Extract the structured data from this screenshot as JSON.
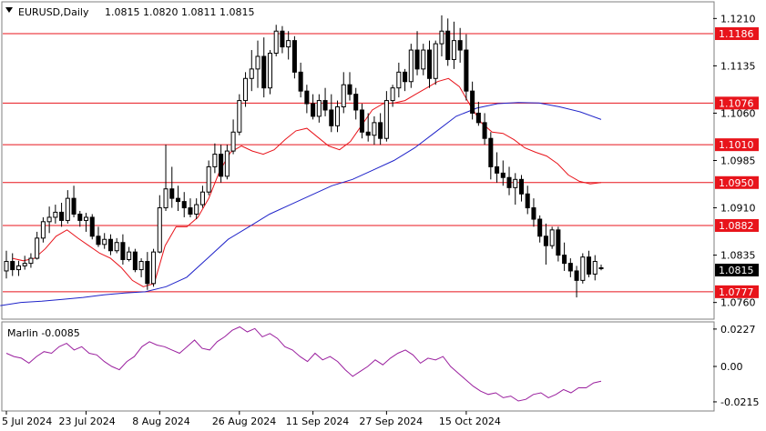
{
  "header": {
    "symbol": "EURUSD,Daily",
    "ohlc": "1.0815 1.0820 1.0811 1.0815"
  },
  "indicator_label": "Marlin -0.0085",
  "current_price_label": "1.0815",
  "colors": {
    "level_line": "#e8141b",
    "level_label_bg": "#e8141b",
    "ma_fast": "#e8141b",
    "ma_slow": "#1f23c9",
    "oscillator": "#9a1f9e",
    "current_price_bg": "#000000"
  },
  "chart_data": [
    {
      "type": "candlestick",
      "ylim": [
        1.0735,
        1.1235
      ],
      "y_ticks": [
        "1.1210",
        "1.1135",
        "1.1060",
        "1.0985",
        "1.0910",
        "1.0835",
        "1.0760"
      ],
      "x_ticks": [
        "5 Jul 2024",
        "23 Jul 2024",
        "8 Aug 2024",
        "26 Aug 2024",
        "11 Sep 2024",
        "27 Sep 2024",
        "15 Oct 2024"
      ],
      "levels": [
        "1.1186",
        "1.1076",
        "1.1010",
        "1.0950",
        "1.0882",
        "1.0777"
      ],
      "ohlc": [
        [
          1.081,
          1.0842,
          1.0798,
          1.0825
        ],
        [
          1.0825,
          1.0838,
          1.0802,
          1.0812
        ],
        [
          1.0812,
          1.0826,
          1.0802,
          1.0818
        ],
        [
          1.0818,
          1.0834,
          1.0812,
          1.0822
        ],
        [
          1.0822,
          1.0838,
          1.0815,
          1.083
        ],
        [
          1.083,
          1.0872,
          1.0828,
          1.0862
        ],
        [
          1.0862,
          1.0895,
          1.0855,
          1.0888
        ],
        [
          1.0888,
          1.0912,
          1.087,
          1.0895
        ],
        [
          1.0895,
          1.0915,
          1.0885,
          1.0903
        ],
        [
          1.0903,
          1.0918,
          1.088,
          1.089
        ],
        [
          1.089,
          1.0938,
          1.0885,
          1.0925
        ],
        [
          1.0925,
          1.0945,
          1.0895,
          1.09
        ],
        [
          1.09,
          1.0905,
          1.088,
          1.089
        ],
        [
          1.089,
          1.0902,
          1.0872,
          1.0895
        ],
        [
          1.0895,
          1.09,
          1.086,
          1.0865
        ],
        [
          1.0865,
          1.088,
          1.0848,
          1.0852
        ],
        [
          1.0852,
          1.087,
          1.0845,
          1.086
        ],
        [
          1.086,
          1.0868,
          1.0835,
          1.0842
        ],
        [
          1.0842,
          1.0862,
          1.0838,
          1.0855
        ],
        [
          1.0855,
          1.0868,
          1.082,
          1.0828
        ],
        [
          1.0828,
          1.0848,
          1.0825,
          1.084
        ],
        [
          1.084,
          1.0845,
          1.0808,
          1.0812
        ],
        [
          1.0812,
          1.083,
          1.08,
          1.0825
        ],
        [
          1.0825,
          1.084,
          1.078,
          1.079
        ],
        [
          1.079,
          1.0845,
          1.0785,
          1.084
        ],
        [
          1.084,
          1.093,
          1.0838,
          1.091
        ],
        [
          1.091,
          1.101,
          1.0905,
          1.094
        ],
        [
          1.094,
          1.0975,
          1.091,
          1.0925
        ],
        [
          1.0925,
          1.0945,
          1.0905,
          1.092
        ],
        [
          1.092,
          1.0935,
          1.0895,
          1.091
        ],
        [
          1.091,
          1.0925,
          1.0895,
          1.09
        ],
        [
          1.09,
          1.0925,
          1.0892,
          1.0915
        ],
        [
          1.0915,
          1.0945,
          1.091,
          1.0935
        ],
        [
          1.0935,
          1.0985,
          1.093,
          1.0975
        ],
        [
          1.0975,
          1.1012,
          1.0965,
          1.0995
        ],
        [
          1.0995,
          1.101,
          1.095,
          1.096
        ],
        [
          1.096,
          1.101,
          1.0955,
          1.1
        ],
        [
          1.1,
          1.105,
          1.0995,
          1.103
        ],
        [
          1.103,
          1.109,
          1.1025,
          1.108
        ],
        [
          1.108,
          1.1125,
          1.107,
          1.1115
        ],
        [
          1.1115,
          1.116,
          1.1095,
          1.113
        ],
        [
          1.113,
          1.1175,
          1.11,
          1.115
        ],
        [
          1.115,
          1.118,
          1.1085,
          1.11
        ],
        [
          1.11,
          1.116,
          1.109,
          1.1155
        ],
        [
          1.1155,
          1.12,
          1.115,
          1.119
        ],
        [
          1.119,
          1.1198,
          1.1155,
          1.1165
        ],
        [
          1.1165,
          1.119,
          1.1145,
          1.1175
        ],
        [
          1.1175,
          1.1182,
          1.1115,
          1.1125
        ],
        [
          1.1125,
          1.114,
          1.1085,
          1.1095
        ],
        [
          1.1095,
          1.1105,
          1.106,
          1.1075
        ],
        [
          1.1075,
          1.109,
          1.105,
          1.1055
        ],
        [
          1.1055,
          1.109,
          1.1045,
          1.108
        ],
        [
          1.108,
          1.11,
          1.1055,
          1.1065
        ],
        [
          1.1065,
          1.109,
          1.103,
          1.104
        ],
        [
          1.104,
          1.108,
          1.103,
          1.107
        ],
        [
          1.107,
          1.1125,
          1.106,
          1.1105
        ],
        [
          1.1105,
          1.1125,
          1.108,
          1.109
        ],
        [
          1.109,
          1.11,
          1.105,
          1.1065
        ],
        [
          1.1065,
          1.1075,
          1.102,
          1.103
        ],
        [
          1.103,
          1.106,
          1.1015,
          1.1025
        ],
        [
          1.1025,
          1.1055,
          1.101,
          1.1045
        ],
        [
          1.1045,
          1.106,
          1.101,
          1.102
        ],
        [
          1.102,
          1.1095,
          1.1015,
          1.108
        ],
        [
          1.108,
          1.1105,
          1.107,
          1.11
        ],
        [
          1.11,
          1.114,
          1.1085,
          1.1125
        ],
        [
          1.1125,
          1.113,
          1.1095,
          1.111
        ],
        [
          1.111,
          1.117,
          1.11,
          1.116
        ],
        [
          1.116,
          1.119,
          1.112,
          1.113
        ],
        [
          1.113,
          1.117,
          1.112,
          1.116
        ],
        [
          1.116,
          1.1175,
          1.11,
          1.1115
        ],
        [
          1.1115,
          1.1175,
          1.1105,
          1.117
        ],
        [
          1.117,
          1.1215,
          1.115,
          1.119
        ],
        [
          1.119,
          1.121,
          1.1135,
          1.1145
        ],
        [
          1.1145,
          1.1205,
          1.113,
          1.1175
        ],
        [
          1.1175,
          1.1195,
          1.114,
          1.116
        ],
        [
          1.116,
          1.1185,
          1.108,
          1.1095
        ],
        [
          1.1095,
          1.111,
          1.105,
          1.106
        ],
        [
          1.106,
          1.1078,
          1.104,
          1.1045
        ],
        [
          1.1045,
          1.106,
          1.101,
          1.102
        ],
        [
          1.102,
          1.103,
          1.0955,
          1.0975
        ],
        [
          1.0975,
          1.0998,
          1.095,
          1.0965
        ],
        [
          1.0965,
          1.0985,
          1.0945,
          1.0958
        ],
        [
          1.0958,
          1.0975,
          1.093,
          1.0942
        ],
        [
          1.0942,
          1.0965,
          1.0915,
          1.0955
        ],
        [
          1.0955,
          1.0962,
          1.092,
          1.0932
        ],
        [
          1.0932,
          1.0945,
          1.09,
          1.091
        ],
        [
          1.091,
          1.0925,
          1.088,
          1.0892
        ],
        [
          1.0892,
          1.0898,
          1.0855,
          1.0865
        ],
        [
          1.0865,
          1.0885,
          1.082,
          1.085
        ],
        [
          1.085,
          1.088,
          1.0845,
          1.0875
        ],
        [
          1.0875,
          1.088,
          1.0825,
          1.0835
        ],
        [
          1.0835,
          1.0855,
          1.081,
          1.0822
        ],
        [
          1.0822,
          1.083,
          1.08,
          1.081
        ],
        [
          1.081,
          1.0818,
          1.0768,
          1.0795
        ],
        [
          1.0795,
          1.0838,
          1.079,
          1.0832
        ],
        [
          1.0832,
          1.0842,
          1.08,
          1.0805
        ],
        [
          1.0805,
          1.0835,
          1.0795,
          1.0825
        ],
        [
          1.0815,
          1.082,
          1.0811,
          1.0815
        ]
      ],
      "ma_fast": [
        1.083,
        1.0826,
        1.083,
        1.0845,
        1.0865,
        1.0875,
        1.0862,
        1.085,
        1.0838,
        1.083,
        1.0815,
        1.0795,
        1.0785,
        1.079,
        1.085,
        1.088,
        1.088,
        1.0895,
        1.0925,
        1.0968,
        1.0998,
        1.1008,
        1.1,
        1.0995,
        1.1002,
        1.1018,
        1.1032,
        1.1036,
        1.1022,
        1.1008,
        1.1002,
        1.1015,
        1.104,
        1.1065,
        1.1075,
        1.1076,
        1.108,
        1.109,
        1.11,
        1.111,
        1.1115,
        1.1102,
        1.1072,
        1.1045,
        1.103,
        1.1028,
        1.1018,
        1.1005,
        1.0998,
        1.0992,
        1.098,
        1.0962,
        1.0952,
        1.0948,
        1.095
      ],
      "ma_slow": [
        1.0755,
        1.076,
        1.0762,
        1.0765,
        1.0768,
        1.0772,
        1.0775,
        1.0777,
        1.0785,
        1.08,
        1.083,
        1.086,
        1.088,
        1.09,
        1.0915,
        1.093,
        1.0945,
        1.0955,
        1.097,
        1.0985,
        1.1005,
        1.103,
        1.1055,
        1.1068,
        1.1075,
        1.1077,
        1.1076,
        1.107,
        1.1062,
        1.105
      ],
      "oscillator": {
        "name": "Marlin",
        "ylim": [
          -0.0265,
          0.0265
        ],
        "y_ticks": [
          "0.0227",
          "0.00",
          "-0.0215"
        ],
        "values": [
          0.008,
          0.006,
          0.005,
          0.002,
          0.006,
          0.009,
          0.008,
          0.012,
          0.014,
          0.01,
          0.012,
          0.008,
          0.007,
          0.003,
          0.0,
          -0.002,
          0.003,
          0.006,
          0.012,
          0.015,
          0.013,
          0.012,
          0.01,
          0.008,
          0.012,
          0.016,
          0.011,
          0.01,
          0.015,
          0.018,
          0.022,
          0.024,
          0.021,
          0.023,
          0.018,
          0.02,
          0.017,
          0.012,
          0.01,
          0.006,
          0.003,
          0.008,
          0.004,
          0.006,
          0.003,
          -0.002,
          -0.006,
          -0.003,
          0.0,
          0.004,
          0.001,
          0.005,
          0.008,
          0.01,
          0.007,
          0.002,
          0.005,
          0.004,
          0.006,
          0.0,
          -0.004,
          -0.008,
          -0.012,
          -0.015,
          -0.017,
          -0.016,
          -0.019,
          -0.018,
          -0.021,
          -0.02,
          -0.017,
          -0.016,
          -0.019,
          -0.017,
          -0.014,
          -0.016,
          -0.013,
          -0.013,
          -0.01,
          -0.009
        ]
      }
    }
  ]
}
